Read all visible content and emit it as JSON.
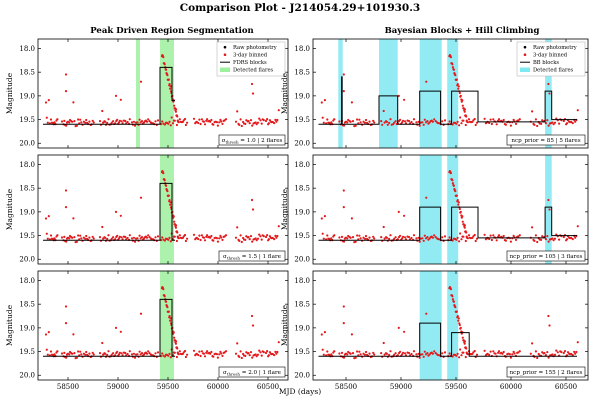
{
  "figure": {
    "suptitle": "Comparison Plot - J214054.29+101930.3",
    "columns": [
      "Peak Driven Region Segmentation",
      "Bayesian Blocks + Hill Climbing"
    ],
    "xlabel": "MJD (days)",
    "ylabel": "Magnitude"
  },
  "legend_left": {
    "entries": [
      {
        "label": "Raw photometry",
        "kind": "point",
        "color": "#000000"
      },
      {
        "label": "3-day binned",
        "kind": "point",
        "color": "#e41a1c"
      },
      {
        "label": "FDRS blocks",
        "kind": "line",
        "color": "#000000"
      },
      {
        "label": "Detected flares",
        "kind": "patch",
        "color": "#9ef09e"
      }
    ]
  },
  "legend_right": {
    "entries": [
      {
        "label": "Raw photometry",
        "kind": "point",
        "color": "#000000"
      },
      {
        "label": "3-day binned",
        "kind": "point",
        "color": "#e41a1c"
      },
      {
        "label": "BB blocks",
        "kind": "line",
        "color": "#000000"
      },
      {
        "label": "Detected flares",
        "kind": "patch",
        "color": "#7fe8f0"
      }
    ]
  },
  "colors": {
    "points": "#e41a1c",
    "blocks": "#000000",
    "flare_left": "#9ef09e",
    "flare_right": "#7fe8f0"
  },
  "chart_data": [
    {
      "type": "scatter",
      "panel": "left-1",
      "annotation": {
        "sigma": "1.0",
        "flares": "2 flares"
      },
      "xlim": [
        58200,
        60700
      ],
      "ylim": [
        20.1,
        17.8
      ],
      "xticks": [
        58500,
        59000,
        59500,
        60000,
        60500
      ],
      "yticks": [
        18.0,
        18.5,
        19.0,
        19.5,
        20.0
      ],
      "flares": [
        [
          59180,
          59220
        ],
        [
          59420,
          59560
        ]
      ],
      "blocks": [
        [
          58250,
          59180,
          19.6
        ],
        [
          59180,
          59270,
          19.6
        ],
        [
          59270,
          59420,
          19.6
        ],
        [
          59420,
          59540,
          18.4
        ],
        [
          59540,
          59570,
          19.1
        ]
      ],
      "series": [
        {
          "name": "3-day binned",
          "points": []
        }
      ]
    },
    {
      "type": "scatter",
      "panel": "right-1",
      "annotation": {
        "prior": "ncp_prior = 85",
        "flares": "5 flares"
      },
      "xlim": [
        58200,
        60700
      ],
      "ylim": [
        20.1,
        17.8
      ],
      "xticks": [
        58500,
        59000,
        59500,
        60000,
        60500
      ],
      "yticks": [
        18.0,
        18.5,
        19.0,
        19.5,
        20.0
      ],
      "flares": [
        [
          58430,
          58470
        ],
        [
          58800,
          58970
        ],
        [
          59170,
          59370
        ],
        [
          59420,
          59520
        ],
        [
          60310,
          60370
        ]
      ],
      "blocks": [
        [
          58250,
          58460,
          19.6
        ],
        [
          58460,
          58465,
          18.6
        ],
        [
          58465,
          58800,
          19.6
        ],
        [
          58800,
          58970,
          19.0
        ],
        [
          58970,
          59170,
          19.6
        ],
        [
          59170,
          59360,
          18.9
        ],
        [
          59360,
          59460,
          19.6
        ],
        [
          59460,
          59700,
          18.9
        ],
        [
          59700,
          60310,
          19.55
        ],
        [
          60310,
          60370,
          18.9
        ],
        [
          60370,
          60600,
          19.5
        ]
      ],
      "series": [
        {
          "name": "3-day binned",
          "points": []
        }
      ]
    },
    {
      "type": "scatter",
      "panel": "left-2",
      "annotation": {
        "sigma": "1.5",
        "flares": "1 flare"
      },
      "xlim": [
        58200,
        60700
      ],
      "ylim": [
        20.1,
        17.8
      ],
      "xticks": [
        58500,
        59000,
        59500,
        60000,
        60500
      ],
      "yticks": [
        18.0,
        18.5,
        19.0,
        19.5,
        20.0
      ],
      "flares": [
        [
          59420,
          59560
        ]
      ],
      "blocks": [
        [
          58250,
          59420,
          19.6
        ],
        [
          59420,
          59540,
          18.4
        ],
        [
          59540,
          59570,
          19.6
        ]
      ],
      "series": [
        {
          "name": "3-day binned",
          "points": []
        }
      ]
    },
    {
      "type": "scatter",
      "panel": "right-2",
      "annotation": {
        "prior": "ncp_prior = 105",
        "flares": "3 flares"
      },
      "xlim": [
        58200,
        60700
      ],
      "ylim": [
        20.1,
        17.8
      ],
      "xticks": [
        58500,
        59000,
        59500,
        60000,
        60500
      ],
      "yticks": [
        18.0,
        18.5,
        19.0,
        19.5,
        20.0
      ],
      "flares": [
        [
          59170,
          59370
        ],
        [
          59420,
          59520
        ],
        [
          60310,
          60370
        ]
      ],
      "blocks": [
        [
          58250,
          59170,
          19.6
        ],
        [
          59170,
          59360,
          18.9
        ],
        [
          59360,
          59460,
          19.6
        ],
        [
          59460,
          59700,
          18.9
        ],
        [
          59700,
          60310,
          19.55
        ],
        [
          60310,
          60370,
          18.9
        ],
        [
          60370,
          60600,
          19.5
        ]
      ],
      "series": [
        {
          "name": "3-day binned",
          "points": []
        }
      ]
    },
    {
      "type": "scatter",
      "panel": "left-3",
      "annotation": {
        "sigma": "2.0",
        "flares": "1 flare"
      },
      "xlim": [
        58200,
        60700
      ],
      "ylim": [
        20.1,
        17.8
      ],
      "xticks": [
        58500,
        59000,
        59500,
        60000,
        60500
      ],
      "yticks": [
        18.0,
        18.5,
        19.0,
        19.5,
        20.0
      ],
      "flares": [
        [
          59420,
          59560
        ]
      ],
      "blocks": [
        [
          58250,
          59420,
          19.6
        ],
        [
          59420,
          59540,
          18.4
        ],
        [
          59540,
          59570,
          19.6
        ]
      ],
      "series": [
        {
          "name": "3-day binned",
          "points": []
        }
      ]
    },
    {
      "type": "scatter",
      "panel": "right-3",
      "annotation": {
        "prior": "ncp_prior = 155",
        "flares": "2 flares"
      },
      "xlim": [
        58200,
        60700
      ],
      "ylim": [
        20.1,
        17.8
      ],
      "xticks": [
        58500,
        59000,
        59500,
        60000,
        60500
      ],
      "yticks": [
        18.0,
        18.5,
        19.0,
        19.5,
        20.0
      ],
      "flares": [
        [
          59170,
          59370
        ],
        [
          59420,
          59520
        ]
      ],
      "blocks": [
        [
          58250,
          59170,
          19.6
        ],
        [
          59170,
          59360,
          18.9
        ],
        [
          59360,
          59460,
          19.6
        ],
        [
          59460,
          59620,
          19.1
        ],
        [
          59620,
          60600,
          19.6
        ]
      ],
      "series": [
        {
          "name": "3-day binned",
          "points": []
        }
      ]
    }
  ]
}
